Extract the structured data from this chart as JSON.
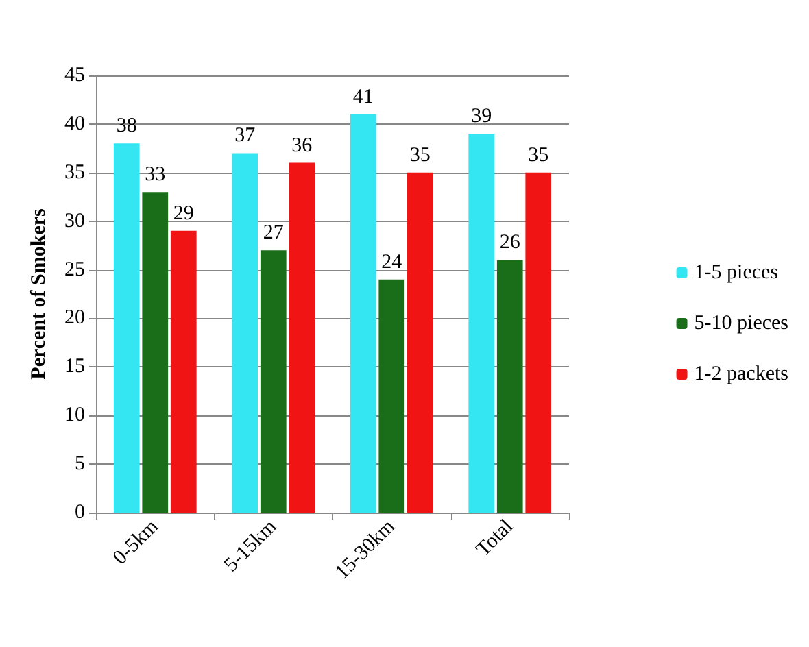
{
  "chart_data": {
    "type": "bar",
    "ylabel": "Percent of Smokers",
    "categories": [
      "0-5km",
      "5-15km",
      "15-30km",
      "Total"
    ],
    "series": [
      {
        "name": "1-5 pieces",
        "color": "#33e6f2",
        "values": [
          38,
          37,
          41,
          39
        ]
      },
      {
        "name": "5-10 pieces",
        "color": "#1a6e1a",
        "values": [
          33,
          27,
          24,
          26
        ]
      },
      {
        "name": "1-2 packets",
        "color": "#f01414",
        "values": [
          29,
          36,
          35,
          35
        ]
      }
    ],
    "ylim": [
      0,
      45
    ],
    "yticks": [
      0,
      5,
      10,
      15,
      20,
      25,
      30,
      35,
      40,
      45
    ],
    "grid": "y",
    "legend": "right",
    "data_labels": true
  }
}
